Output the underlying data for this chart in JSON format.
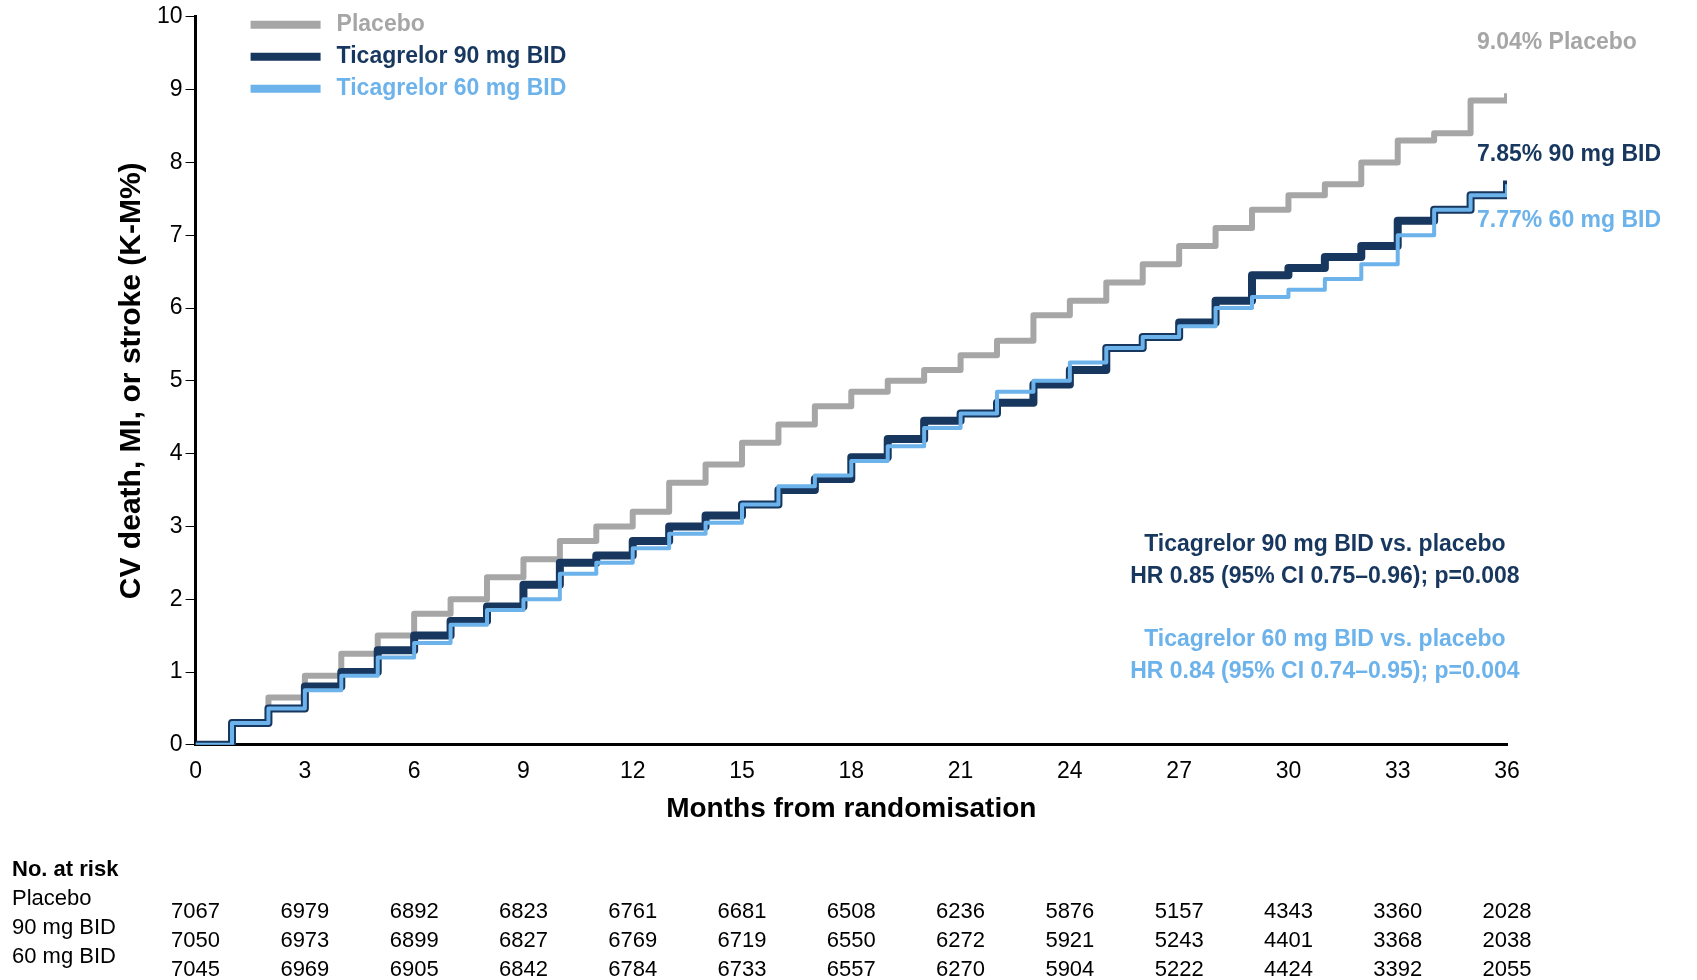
{
  "chart_data": {
    "type": "step",
    "xlabel": "Months from randomisation",
    "ylabel": "CV death, MI, or stroke (K-M%)",
    "x": [
      0,
      1,
      2,
      3,
      4,
      5,
      6,
      7,
      8,
      9,
      10,
      11,
      12,
      13,
      14,
      15,
      16,
      17,
      18,
      19,
      20,
      21,
      22,
      23,
      24,
      25,
      26,
      27,
      28,
      29,
      30,
      31,
      32,
      33,
      34,
      35,
      36
    ],
    "xlim": [
      0,
      36
    ],
    "xticks": [
      0,
      3,
      6,
      9,
      12,
      15,
      18,
      21,
      24,
      27,
      30,
      33,
      36
    ],
    "ylim": [
      0,
      10
    ],
    "yticks": [
      0,
      1,
      2,
      3,
      4,
      5,
      6,
      7,
      8,
      9,
      10
    ],
    "grid": false,
    "legend": "top left",
    "marker": "none",
    "line_style": "solid",
    "series": [
      {
        "name": "Placebo",
        "color": "#a6a6a6",
        "values": [
          0,
          0.3,
          0.65,
          0.95,
          1.25,
          1.5,
          1.8,
          2.0,
          2.3,
          2.55,
          2.8,
          3.0,
          3.2,
          3.6,
          3.85,
          4.15,
          4.4,
          4.65,
          4.85,
          5.0,
          5.15,
          5.35,
          5.55,
          5.9,
          6.1,
          6.35,
          6.6,
          6.85,
          7.1,
          7.35,
          7.55,
          7.7,
          8.0,
          8.3,
          8.4,
          8.85,
          8.95
        ]
      },
      {
        "name": "Ticagrelor 90 mg BID",
        "color": "#17375e",
        "values": [
          0,
          0.3,
          0.5,
          0.8,
          1.0,
          1.3,
          1.5,
          1.7,
          1.9,
          2.2,
          2.5,
          2.6,
          2.8,
          3.0,
          3.15,
          3.3,
          3.5,
          3.65,
          3.95,
          4.2,
          4.45,
          4.55,
          4.7,
          4.95,
          5.15,
          5.45,
          5.6,
          5.8,
          6.1,
          6.45,
          6.55,
          6.7,
          6.85,
          7.2,
          7.35,
          7.55,
          7.75
        ]
      },
      {
        "name": "Ticagrelor 60 mg BID",
        "color": "#6cb2eb",
        "values": [
          0,
          0.3,
          0.5,
          0.75,
          0.95,
          1.2,
          1.4,
          1.65,
          1.85,
          2.0,
          2.35,
          2.5,
          2.7,
          2.9,
          3.05,
          3.3,
          3.55,
          3.7,
          3.9,
          4.1,
          4.35,
          4.55,
          4.85,
          5.0,
          5.25,
          5.45,
          5.6,
          5.75,
          6.0,
          6.15,
          6.25,
          6.4,
          6.6,
          7.0,
          7.35,
          7.55,
          7.7
        ]
      }
    ],
    "annotations": [
      "9.04% Placebo",
      "7.85% 90 mg BID",
      "7.77% 60 mg BID",
      "Ticagrelor 90 mg BID vs. placebo",
      "HR 0.85 (95% CI 0.75–0.96); p=0.008",
      "Ticagrelor 60 mg BID vs. placebo",
      "HR 0.84 (95% CI 0.74–0.95); p=0.004",
      "No. at risk",
      "Placebo",
      "90 mg BID",
      "60 mg BID",
      "7067 6979 6892 6823 6761 6681 6508 6236 5876 5157 4343 3360 2028",
      "7050 6973 6899 6827 6769 6719 6550 6272 5921 5243 4401 3368 2038",
      "7045 6969 6905 6842 6784 6733 6557 6270 5904 5222 4424 3392 2055"
    ]
  }
}
